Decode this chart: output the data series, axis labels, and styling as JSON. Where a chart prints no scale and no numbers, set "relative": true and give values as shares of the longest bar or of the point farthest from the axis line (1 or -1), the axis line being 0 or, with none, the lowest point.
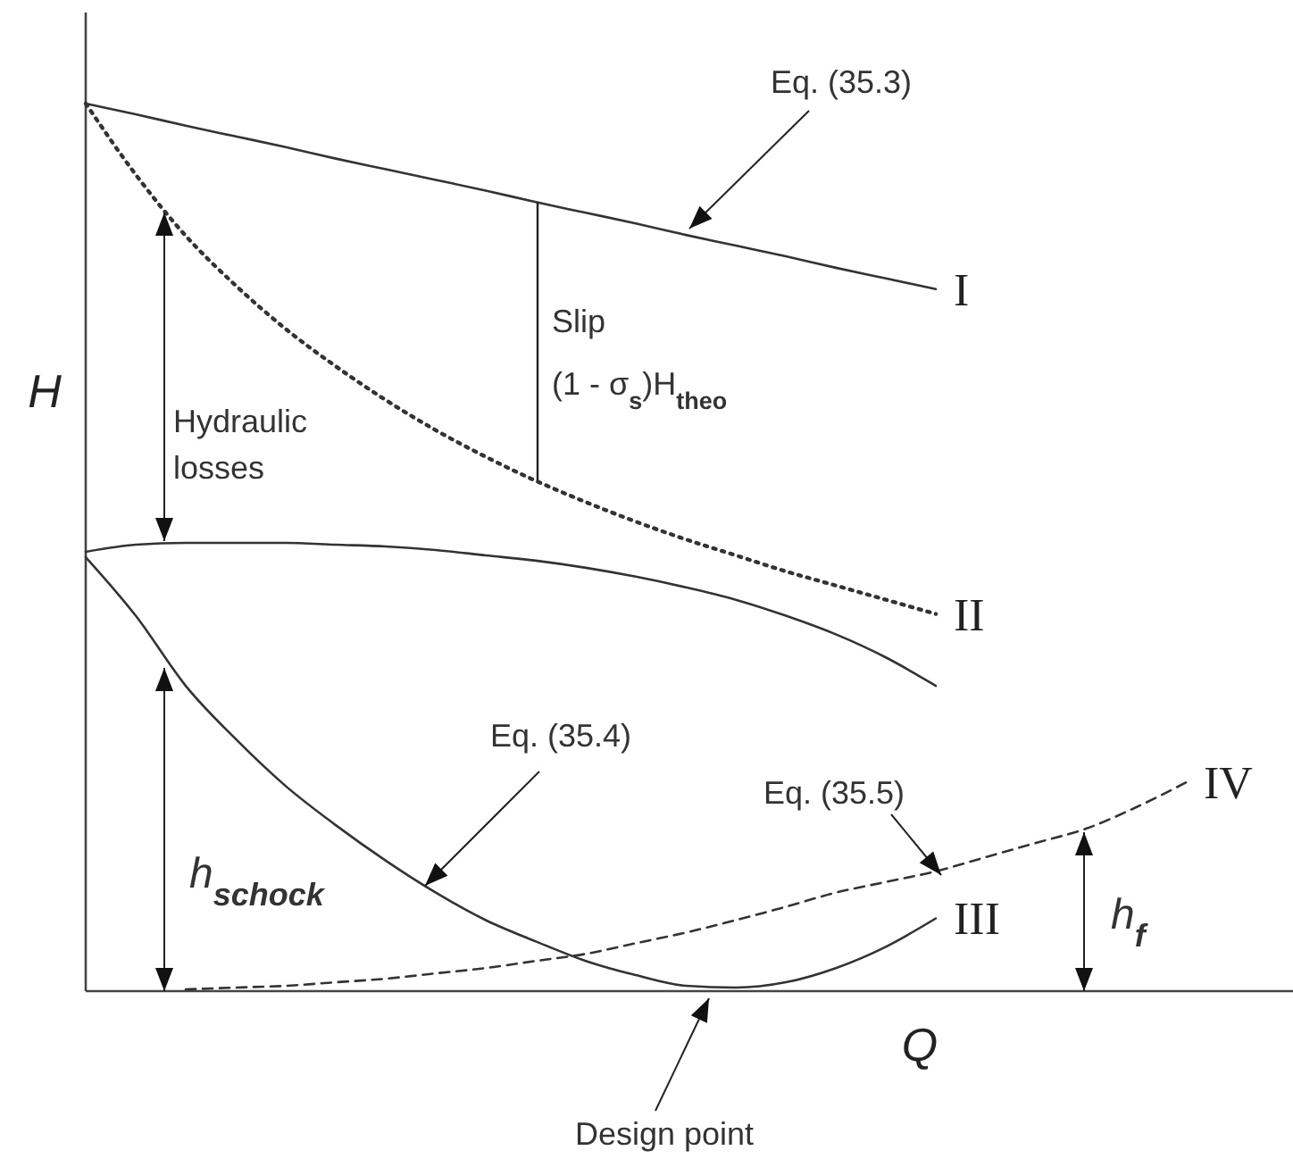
{
  "chart_data": {
    "type": "line",
    "relative": true,
    "xlabel": "Q",
    "ylabel": "H",
    "categories": [
      null,
      null,
      null,
      null,
      null,
      null,
      null,
      null,
      null,
      null,
      null,
      null,
      null,
      null,
      null,
      null,
      null,
      null,
      null,
      null,
      null,
      null,
      null,
      null,
      null
    ],
    "series": [
      {
        "name": "I",
        "color": "#333333",
        "line_style": "solid",
        "values": [
          1.0,
          0.988,
          0.975,
          0.963,
          0.951,
          0.938,
          0.926,
          0.914,
          0.902,
          0.889,
          0.877,
          0.865,
          0.852,
          0.84,
          0.828,
          0.815,
          0.803,
          0.791,
          null,
          null,
          null,
          null,
          null,
          null,
          null
        ]
      },
      {
        "name": "II",
        "color": "#333333",
        "line_style": "dotted",
        "values": [
          1.0,
          0.92,
          0.851,
          0.795,
          0.746,
          0.704,
          0.666,
          0.632,
          0.602,
          0.575,
          0.551,
          0.529,
          0.509,
          0.491,
          0.473,
          0.457,
          0.441,
          0.425,
          null,
          null,
          null,
          null,
          null,
          null,
          null
        ]
      },
      {
        "color": "#333333",
        "line_style": "solid",
        "values": [
          0.495,
          0.503,
          0.505,
          0.505,
          0.505,
          0.503,
          0.501,
          0.497,
          0.491,
          0.485,
          0.477,
          0.467,
          0.455,
          0.441,
          0.423,
          0.402,
          0.376,
          0.344,
          null,
          null,
          null,
          null,
          null,
          null,
          null
        ]
      },
      {
        "name": "III",
        "color": "#333333",
        "line_style": "solid",
        "values": [
          0.489,
          0.423,
          0.344,
          0.284,
          0.231,
          0.187,
          0.147,
          0.111,
          0.08,
          0.056,
          0.034,
          0.018,
          0.006,
          0.004,
          0.01,
          0.026,
          0.05,
          0.082,
          null,
          null,
          null,
          null,
          null,
          null,
          null
        ]
      },
      {
        "name": "IV",
        "color": "#333333",
        "line_style": "dashed",
        "values": [
          null,
          null,
          0.002,
          0.004,
          0.006,
          0.01,
          0.014,
          0.02,
          0.026,
          0.034,
          0.042,
          0.054,
          0.066,
          0.08,
          0.095,
          0.111,
          0.123,
          0.135,
          0.151,
          0.167,
          0.183,
          0.207,
          0.235,
          null,
          null
        ]
      }
    ],
    "annotations": [
      "Eq. (35.3)",
      "Slip",
      "(1 - σ$_{s}$)H$_{theo}$",
      "Hydraulic losses",
      "h$_{schock}$",
      "Eq. (35.4)",
      "Eq. (35.5)",
      "h$_{f}$",
      "Design point"
    ]
  }
}
